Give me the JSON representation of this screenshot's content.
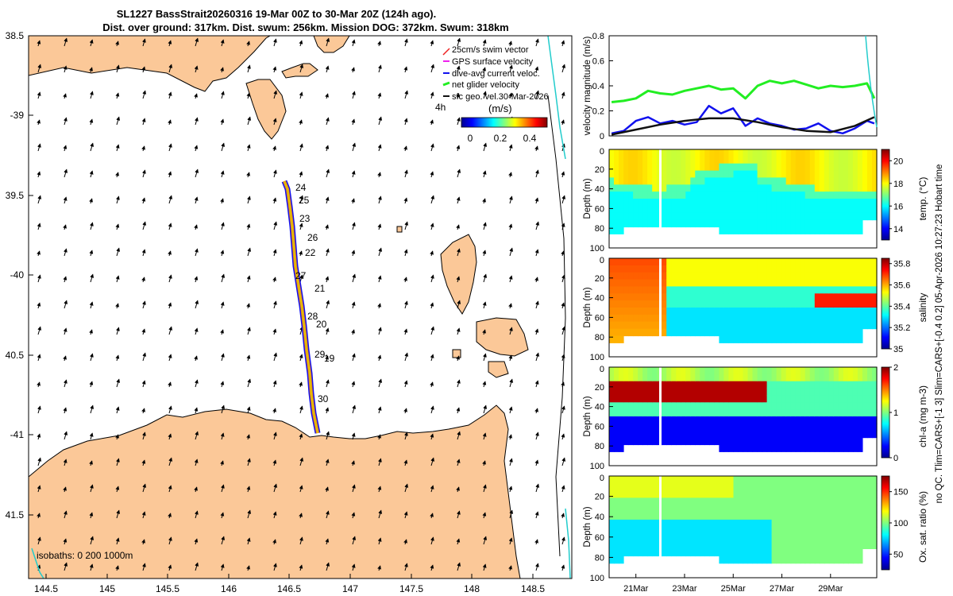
{
  "header": {
    "title_line1": "SL1227 BassStrait20260316 19-Mar 00Z to 30-Mar 20Z (124h ago).",
    "title_line2": "Dist. over ground: 317km. Dist. swum: 256km. Mission DOG: 372km. Swum: 318km"
  },
  "colors": {
    "land": "#fbc898",
    "swim_vector": "#ee2222",
    "gps_velocity": "#ee22ee",
    "dive_avg_current": "#1111ee",
    "net_glider": "#22ee22",
    "sfc_geo": "#111111",
    "isobath_1000": "#22cccc",
    "track": "#ddc400"
  },
  "map": {
    "lon_ticks": [
      "144.5",
      "145",
      "145.5",
      "146",
      "146.5",
      "147",
      "147.5",
      "148",
      "148.5"
    ],
    "lat_ticks": [
      "38.5",
      "-39",
      "39.5",
      "-40",
      "40.5",
      "-41",
      "41.5"
    ],
    "isobaths_text": "isobaths: 0   200  1000m",
    "legend": [
      "25cm/s swim vector",
      "GPS surface velocity",
      "dive-avg current veloc.",
      "net glider velocity",
      "sfc geo. vel.30-Mar-2026"
    ],
    "scale_label": "4h",
    "colorbar_label": "(m/s)",
    "colorbar_ticks": [
      "0",
      "0.2",
      "0.4"
    ],
    "day_labels": [
      "24",
      "25",
      "23",
      "26",
      "22",
      "27",
      "21",
      "28",
      "20",
      "29",
      "19",
      "30"
    ]
  },
  "side_label": "no QC. Tlim=CARS+[-1 3] Slim=CARS+[-0.4 0.2] 05-Apr-2026 10:27:23 Hobart time",
  "chart_data": [
    {
      "type": "line",
      "title": "",
      "ylabel": "velocity magnitude (m/s)",
      "ylim": [
        0,
        0.8
      ],
      "yticks": [
        "0",
        "0.2",
        "0.4",
        "0.6",
        "0.8"
      ],
      "x_days": [
        19.9,
        30.9
      ],
      "series": [
        {
          "name": "net glider velocity",
          "color": "#22ee22",
          "x": [
            20.0,
            20.5,
            21.0,
            21.5,
            22.0,
            22.5,
            23.0,
            23.5,
            24.0,
            24.5,
            25.0,
            25.5,
            26.0,
            26.5,
            27.0,
            27.5,
            28.0,
            28.5,
            29.0,
            29.5,
            30.0,
            30.5,
            30.8
          ],
          "y": [
            0.27,
            0.28,
            0.3,
            0.36,
            0.34,
            0.33,
            0.36,
            0.38,
            0.4,
            0.37,
            0.38,
            0.3,
            0.4,
            0.44,
            0.42,
            0.44,
            0.41,
            0.38,
            0.4,
            0.39,
            0.4,
            0.42,
            0.3
          ]
        },
        {
          "name": "dive-avg current veloc.",
          "color": "#1111ee",
          "x": [
            20.0,
            20.5,
            21.0,
            21.5,
            22.0,
            22.5,
            23.0,
            23.5,
            24.0,
            24.5,
            25.0,
            25.5,
            26.0,
            26.5,
            27.0,
            27.5,
            28.0,
            28.5,
            29.0,
            29.5,
            30.0,
            30.5,
            30.8
          ],
          "y": [
            0.02,
            0.04,
            0.12,
            0.15,
            0.1,
            0.12,
            0.09,
            0.11,
            0.24,
            0.18,
            0.22,
            0.08,
            0.14,
            0.1,
            0.08,
            0.05,
            0.06,
            0.1,
            0.04,
            0.02,
            0.06,
            0.12,
            0.1
          ]
        },
        {
          "name": "sfc geo. vel.",
          "color": "#111111",
          "x": [
            20.0,
            21.0,
            22.0,
            23.0,
            24.0,
            25.0,
            26.0,
            27.0,
            28.0,
            29.0,
            30.0,
            30.8
          ],
          "y": [
            0.01,
            0.05,
            0.09,
            0.12,
            0.14,
            0.14,
            0.11,
            0.07,
            0.04,
            0.03,
            0.08,
            0.15
          ]
        }
      ]
    },
    {
      "type": "heatmap",
      "ylabel": "Depth (m)",
      "ylim": [
        100,
        0
      ],
      "yticks": [
        "20",
        "40",
        "60",
        "80",
        "100"
      ],
      "colorbar_label": "temp. (°C)",
      "colorbar_ticks": [
        "14",
        "16",
        "18",
        "20"
      ],
      "clim": [
        13,
        21
      ]
    },
    {
      "type": "heatmap",
      "ylabel": "Depth (m)",
      "ylim": [
        100,
        0
      ],
      "yticks": [
        "20",
        "40",
        "60",
        "80",
        "100"
      ],
      "colorbar_label": "salinity",
      "colorbar_ticks": [
        "35",
        "35.2",
        "35.4",
        "35.6",
        "35.8"
      ],
      "clim": [
        35,
        35.85
      ]
    },
    {
      "type": "heatmap",
      "ylabel": "Depth (m)",
      "ylim": [
        100,
        0
      ],
      "yticks": [
        "20",
        "40",
        "60",
        "80",
        "100"
      ],
      "colorbar_label": "chl-a (mg m-3)",
      "colorbar_ticks": [
        "0",
        "1",
        "2"
      ],
      "clim": [
        0,
        2
      ]
    },
    {
      "type": "heatmap",
      "ylabel": "Depth (m)",
      "ylim": [
        100,
        0
      ],
      "yticks": [
        "20",
        "40",
        "60",
        "80",
        "100"
      ],
      "colorbar_label": "Ox. sat. ratio (%)",
      "colorbar_ticks": [
        "50",
        "100",
        "150"
      ],
      "clim": [
        25,
        175
      ],
      "xticks": [
        "21Mar",
        "23Mar",
        "25Mar",
        "27Mar",
        "29Mar"
      ]
    }
  ]
}
